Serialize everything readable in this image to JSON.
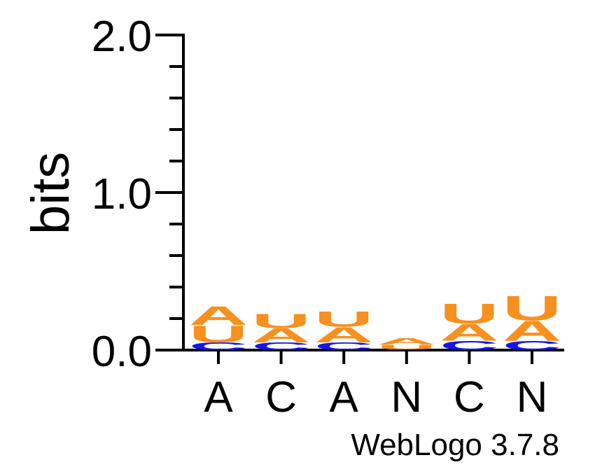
{
  "chart_data": {
    "type": "sequence-logo",
    "ylabel": "bits",
    "ylim": [
      0,
      2.0
    ],
    "y_tick_labels": [
      "0.0",
      "1.0",
      "2.0"
    ],
    "x_tick_labels": [
      "A",
      "C",
      "A",
      "N",
      "C",
      "N"
    ],
    "footer": "WebLogo 3.7.8",
    "colors": {
      "A": "#f7901e",
      "U": "#f7901e",
      "C": "#1414f0",
      "G": "#f7901e"
    },
    "positions": [
      {
        "letters": [
          {
            "letter": "C",
            "bits": 0.05
          },
          {
            "letter": "U",
            "bits": 0.11
          },
          {
            "letter": "A",
            "bits": 0.12
          }
        ]
      },
      {
        "letters": [
          {
            "letter": "C",
            "bits": 0.05
          },
          {
            "letter": "A",
            "bits": 0.09
          },
          {
            "letter": "U",
            "bits": 0.09
          }
        ]
      },
      {
        "letters": [
          {
            "letter": "C",
            "bits": 0.05
          },
          {
            "letter": "A",
            "bits": 0.1
          },
          {
            "letter": "U",
            "bits": 0.1
          }
        ]
      },
      {
        "letters": [
          {
            "letter": "C",
            "bits": 0.005
          },
          {
            "letter": "U",
            "bits": 0.03
          },
          {
            "letter": "A",
            "bits": 0.04
          }
        ]
      },
      {
        "letters": [
          {
            "letter": "C",
            "bits": 0.06
          },
          {
            "letter": "A",
            "bits": 0.11
          },
          {
            "letter": "U",
            "bits": 0.13
          }
        ]
      },
      {
        "letters": [
          {
            "letter": "C",
            "bits": 0.06
          },
          {
            "letter": "A",
            "bits": 0.13
          },
          {
            "letter": "U",
            "bits": 0.16
          }
        ]
      }
    ]
  }
}
